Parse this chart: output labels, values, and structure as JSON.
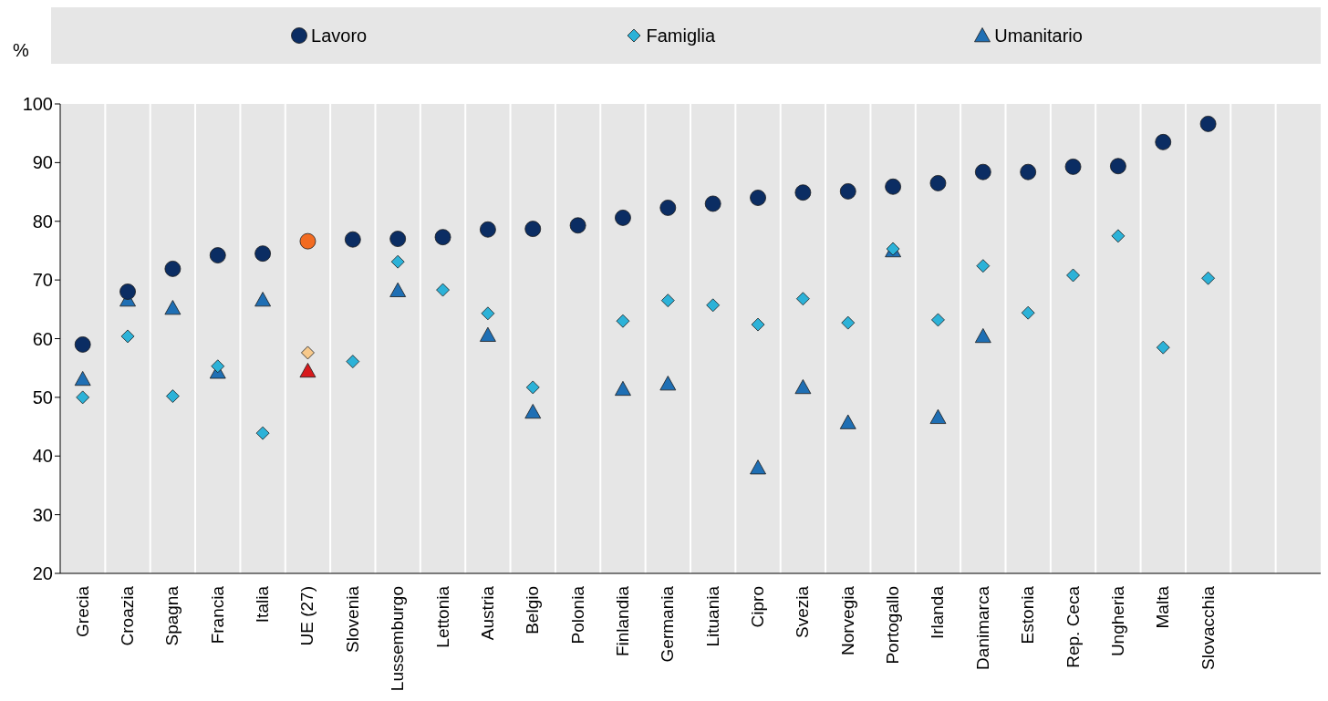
{
  "chart_data": {
    "type": "scatter",
    "ylabel": "%",
    "categories": [
      "Grecia",
      "Croazia",
      "Spagna",
      "Francia",
      "Italia",
      "UE (27)",
      "Slovenia",
      "Lussemburgo",
      "Lettonia",
      "Austria",
      "Belgio",
      "Polonia",
      "Finlandia",
      "Germania",
      "Lituania",
      "Cipro",
      "Svezia",
      "Norvegia",
      "Portogallo",
      "Irlanda",
      "Danimarca",
      "Estonia",
      "Rep. Ceca",
      "Ungheria",
      "Malta",
      "Slovacchia",
      null,
      null
    ],
    "series": [
      {
        "name": "Lavoro",
        "color": "#0b2d63",
        "marker": "circle",
        "colors": [
          null,
          null,
          null,
          null,
          null,
          "#f26b21",
          null,
          null,
          null,
          null,
          null,
          null,
          null,
          null,
          null,
          null,
          null,
          null,
          null,
          null,
          null,
          null,
          null,
          null,
          null,
          null,
          null,
          null
        ],
        "values": [
          59.0,
          68.0,
          71.9,
          74.2,
          74.5,
          76.6,
          76.9,
          77.0,
          77.3,
          78.6,
          78.7,
          79.3,
          80.6,
          82.3,
          83.0,
          84.0,
          84.9,
          85.1,
          85.9,
          86.5,
          88.4,
          88.4,
          89.3,
          89.4,
          93.5,
          96.6,
          null,
          null
        ]
      },
      {
        "name": "Famiglia",
        "color": "#2cb2d8",
        "marker": "diamond",
        "colors": [
          null,
          null,
          null,
          null,
          null,
          "#f7c98b",
          null,
          null,
          null,
          null,
          null,
          null,
          null,
          null,
          null,
          null,
          null,
          null,
          null,
          null,
          null,
          null,
          null,
          null,
          null,
          null,
          null,
          null
        ],
        "values": [
          50.0,
          60.4,
          50.2,
          55.3,
          43.9,
          57.6,
          56.1,
          73.1,
          68.3,
          64.3,
          51.7,
          null,
          63.0,
          66.5,
          65.7,
          62.4,
          66.8,
          62.7,
          75.3,
          63.2,
          72.4,
          64.4,
          70.8,
          77.5,
          58.5,
          70.3,
          null,
          null
        ]
      },
      {
        "name": "Umanitario",
        "color": "#1f6fb4",
        "marker": "triangle",
        "colors": [
          null,
          null,
          null,
          null,
          null,
          "#d7191c",
          null,
          null,
          null,
          null,
          null,
          null,
          null,
          null,
          null,
          null,
          null,
          null,
          null,
          null,
          null,
          null,
          null,
          null,
          null,
          null,
          null,
          null
        ],
        "values": [
          53.1,
          66.6,
          65.2,
          54.3,
          66.6,
          54.5,
          null,
          68.2,
          null,
          60.6,
          47.5,
          null,
          51.4,
          52.3,
          null,
          38.0,
          51.7,
          45.7,
          75.0,
          46.6,
          60.4,
          null,
          null,
          null,
          null,
          null,
          null,
          null
        ]
      }
    ],
    "ylim": [
      20,
      100
    ],
    "yticks": [
      20,
      30,
      40,
      50,
      60,
      70,
      80,
      90,
      100
    ],
    "grid": "x",
    "legend": "top"
  }
}
